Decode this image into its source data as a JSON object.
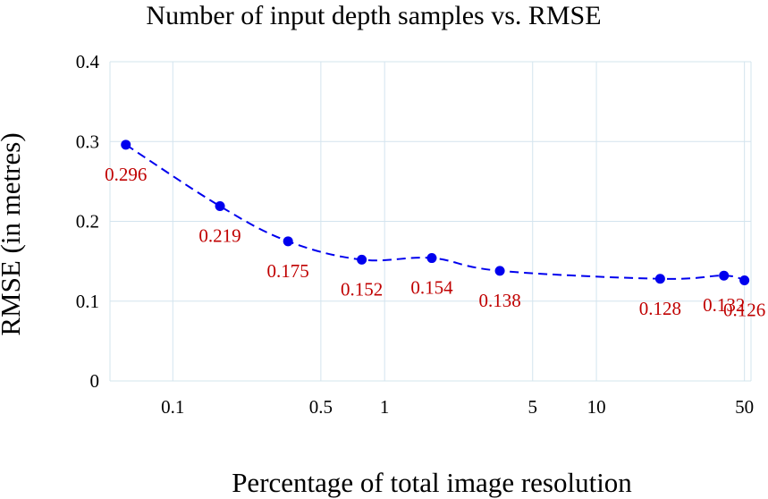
{
  "chart_data": {
    "type": "line",
    "title": "Number of input depth samples vs. RMSE",
    "xlabel": "Percentage of total image resolution",
    "ylabel": "RMSE (in metres)",
    "x_scale": "log",
    "y_range": [
      0,
      0.4
    ],
    "y_ticks": [
      "0",
      "0.1",
      "0.2",
      "0.3",
      "0.4"
    ],
    "x_ticks": [
      {
        "value": 0.1,
        "label": "0.1"
      },
      {
        "value": 0.5,
        "label": "0.5"
      },
      {
        "value": 1,
        "label": "1"
      },
      {
        "value": 5,
        "label": "5"
      },
      {
        "value": 10,
        "label": "10"
      },
      {
        "value": 50,
        "label": "50"
      }
    ],
    "grid": true,
    "series": [
      {
        "x": [
          0.06,
          0.167,
          0.35,
          0.78,
          1.67,
          3.5,
          20,
          40,
          50
        ],
        "values": [
          0.296,
          0.219,
          0.175,
          0.152,
          0.154,
          0.138,
          0.128,
          0.132,
          0.126
        ],
        "data_labels": [
          "0.296",
          "0.219",
          "0.175",
          "0.152",
          "0.154",
          "0.138",
          "0.128",
          "0.132",
          "0.126"
        ],
        "color": "#0000ee",
        "line_style": "dashed"
      }
    ],
    "label_color": "#c00000"
  }
}
